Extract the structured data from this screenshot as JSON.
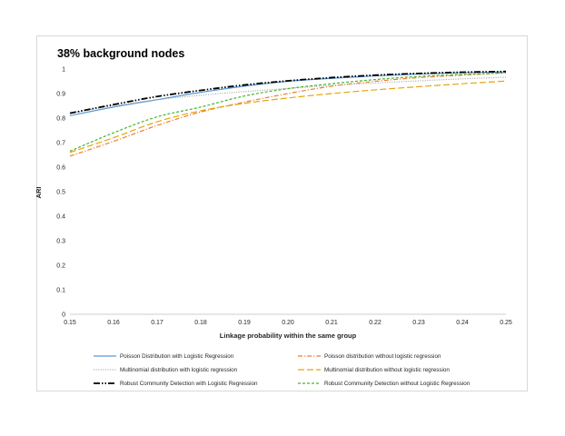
{
  "chart_data": {
    "type": "line",
    "title": "38% background nodes",
    "xlabel": "Linkage probability within the same group",
    "ylabel": "ARI",
    "xlim": [
      0.15,
      0.25
    ],
    "ylim": [
      0,
      1
    ],
    "x_ticks": [
      "0.15",
      "0.16",
      "0.17",
      "0.18",
      "0.19",
      "0.20",
      "0.21",
      "0.22",
      "0.23",
      "0.24",
      "0.25"
    ],
    "y_ticks": [
      "0",
      "0.1",
      "0.2",
      "0.3",
      "0.4",
      "0.5",
      "0.6",
      "0.7",
      "0.8",
      "0.9",
      "1"
    ],
    "grid": false,
    "legend_position": "bottom",
    "x": [
      0.15,
      0.16,
      0.17,
      0.18,
      0.19,
      0.2,
      0.21,
      0.22,
      0.23,
      0.24,
      0.25
    ],
    "series": [
      {
        "name": "Poisson Distribution with Logistic Regression",
        "color": "#5b9bd5",
        "dash": "solid",
        "values": [
          0.81,
          0.845,
          0.875,
          0.905,
          0.93,
          0.95,
          0.962,
          0.972,
          0.98,
          0.985,
          0.988
        ]
      },
      {
        "name": "Poisson distribution without logistic regression",
        "color": "#ed7d31",
        "dash": "dashdot",
        "values": [
          0.645,
          0.705,
          0.77,
          0.825,
          0.865,
          0.9,
          0.93,
          0.95,
          0.965,
          0.975,
          0.985
        ]
      },
      {
        "name": "Multinomial distribution with logistic regression",
        "color": "#a5a5a5",
        "dash": "dotted",
        "values": [
          0.82,
          0.85,
          0.875,
          0.893,
          0.908,
          0.921,
          0.933,
          0.943,
          0.952,
          0.96,
          0.967
        ]
      },
      {
        "name": "Multinomial distribution without logistic regression",
        "color": "#e5a50a",
        "dash": "longdash",
        "values": [
          0.66,
          0.72,
          0.785,
          0.83,
          0.86,
          0.882,
          0.9,
          0.915,
          0.928,
          0.94,
          0.951
        ]
      },
      {
        "name": "Robust Community Detection with Logistic Regression",
        "color": "#000000",
        "dash": "longdashdot",
        "values": [
          0.82,
          0.855,
          0.888,
          0.913,
          0.935,
          0.952,
          0.965,
          0.975,
          0.982,
          0.987,
          0.99
        ]
      },
      {
        "name": "Robust Community Detection without Logistic Regression",
        "color": "#44b52c",
        "dash": "dashed",
        "values": [
          0.665,
          0.74,
          0.805,
          0.845,
          0.89,
          0.92,
          0.94,
          0.957,
          0.97,
          0.978,
          0.984
        ]
      }
    ]
  }
}
